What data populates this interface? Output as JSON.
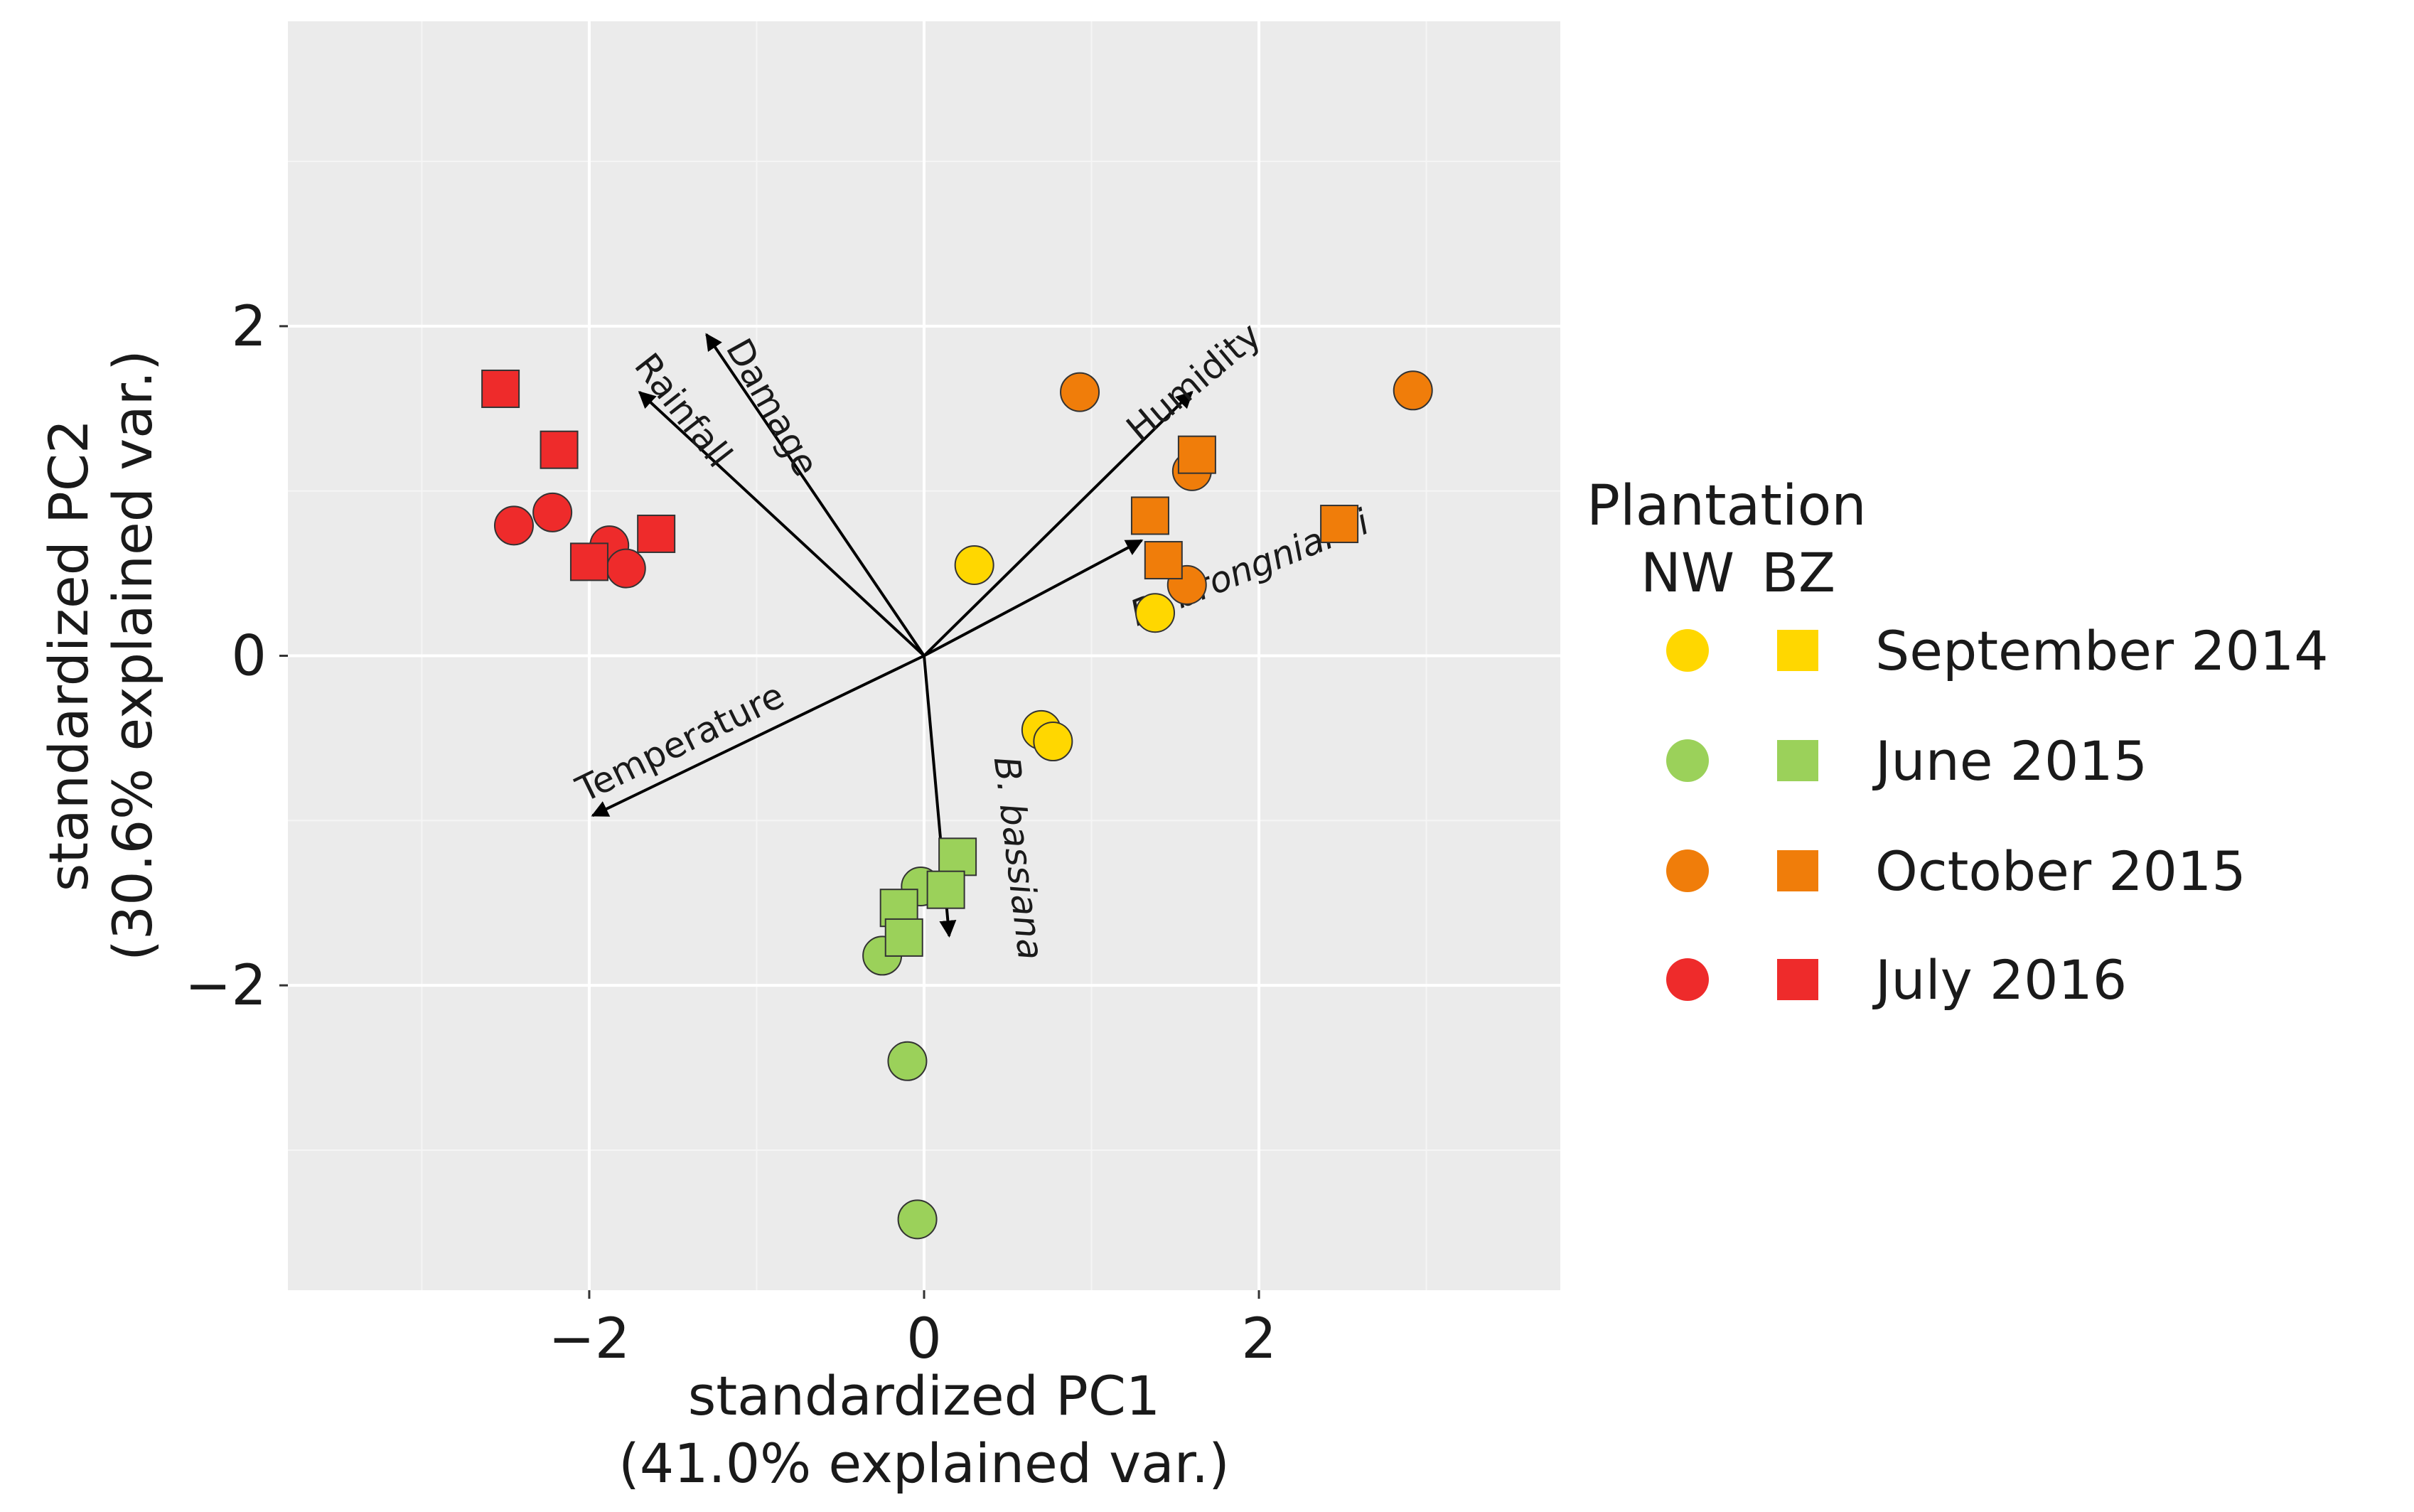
{
  "chart_data": {
    "type": "scatter",
    "title": "",
    "xlabel": [
      "standardized PC1",
      "(41.0% explained var.)"
    ],
    "ylabel": [
      "standardized PC2",
      "(30.6% explained var.)"
    ],
    "xlim": [
      -3.8,
      3.8
    ],
    "ylim": [
      -3.85,
      3.85
    ],
    "x_ticks": [
      {
        "value": -2,
        "label": "−2"
      },
      {
        "value": 0,
        "label": "0"
      },
      {
        "value": 2,
        "label": "2"
      }
    ],
    "y_ticks": [
      {
        "value": -2,
        "label": "−2"
      },
      {
        "value": 0,
        "label": "0"
      },
      {
        "value": 2,
        "label": "2"
      }
    ],
    "legend": {
      "title": "Plantation",
      "shape_labels": [
        "NW",
        "BZ"
      ],
      "position": "right",
      "entries": [
        {
          "label": "September 2014",
          "color": "#FFD700"
        },
        {
          "label": "June 2015",
          "color": "#9BD15A"
        },
        {
          "label": "October 2015",
          "color": "#F07D0A"
        },
        {
          "label": "July 2016",
          "color": "#EE2B2B"
        }
      ]
    },
    "series": [
      {
        "name": "September 2014",
        "color": "#FFD700",
        "points": [
          {
            "x": 0.3,
            "y": 0.55,
            "shape": "circle"
          },
          {
            "x": 0.7,
            "y": -0.45,
            "shape": "circle"
          },
          {
            "x": 0.77,
            "y": -0.52,
            "shape": "circle"
          },
          {
            "x": 1.38,
            "y": 0.26,
            "shape": "circle"
          }
        ]
      },
      {
        "name": "June 2015",
        "color": "#9BD15A",
        "points": [
          {
            "x": -0.25,
            "y": -1.82,
            "shape": "circle"
          },
          {
            "x": -0.1,
            "y": -2.46,
            "shape": "circle"
          },
          {
            "x": -0.04,
            "y": -3.42,
            "shape": "circle"
          },
          {
            "x": -0.02,
            "y": -1.4,
            "shape": "circle"
          },
          {
            "x": 0.2,
            "y": -1.22,
            "shape": "square"
          },
          {
            "x": 0.13,
            "y": -1.42,
            "shape": "square"
          },
          {
            "x": -0.15,
            "y": -1.53,
            "shape": "square"
          },
          {
            "x": -0.12,
            "y": -1.71,
            "shape": "square"
          }
        ]
      },
      {
        "name": "October 2015",
        "color": "#F07D0A",
        "points": [
          {
            "x": 0.93,
            "y": 1.6,
            "shape": "circle"
          },
          {
            "x": 1.6,
            "y": 1.12,
            "shape": "circle"
          },
          {
            "x": 1.57,
            "y": 0.43,
            "shape": "circle"
          },
          {
            "x": 2.92,
            "y": 1.61,
            "shape": "circle"
          },
          {
            "x": 1.63,
            "y": 1.22,
            "shape": "square"
          },
          {
            "x": 1.35,
            "y": 0.85,
            "shape": "square"
          },
          {
            "x": 1.43,
            "y": 0.58,
            "shape": "square"
          },
          {
            "x": 2.48,
            "y": 0.8,
            "shape": "square"
          }
        ]
      },
      {
        "name": "July 2016",
        "color": "#EE2B2B",
        "points": [
          {
            "x": -2.45,
            "y": 0.79,
            "shape": "circle"
          },
          {
            "x": -2.22,
            "y": 0.87,
            "shape": "circle"
          },
          {
            "x": -1.88,
            "y": 0.67,
            "shape": "circle"
          },
          {
            "x": -1.78,
            "y": 0.53,
            "shape": "circle"
          },
          {
            "x": -2.53,
            "y": 1.62,
            "shape": "square"
          },
          {
            "x": -2.18,
            "y": 1.25,
            "shape": "square"
          },
          {
            "x": -1.6,
            "y": 0.74,
            "shape": "square"
          },
          {
            "x": -2.0,
            "y": 0.57,
            "shape": "square"
          }
        ]
      }
    ],
    "loadings": [
      {
        "name": "Rainfall",
        "x": -1.7,
        "y": 1.6,
        "italic": false
      },
      {
        "name": "Damage",
        "x": -1.3,
        "y": 1.95,
        "italic": false
      },
      {
        "name": "Humidity",
        "x": 1.6,
        "y": 1.6,
        "italic": false
      },
      {
        "name": "B. brongniartii",
        "x": 1.3,
        "y": 0.7,
        "italic": true
      },
      {
        "name": "Temperature",
        "x": -1.98,
        "y": -0.97,
        "italic": false
      },
      {
        "name": "B. bassiana",
        "x": 0.15,
        "y": -1.7,
        "italic": true
      }
    ]
  }
}
